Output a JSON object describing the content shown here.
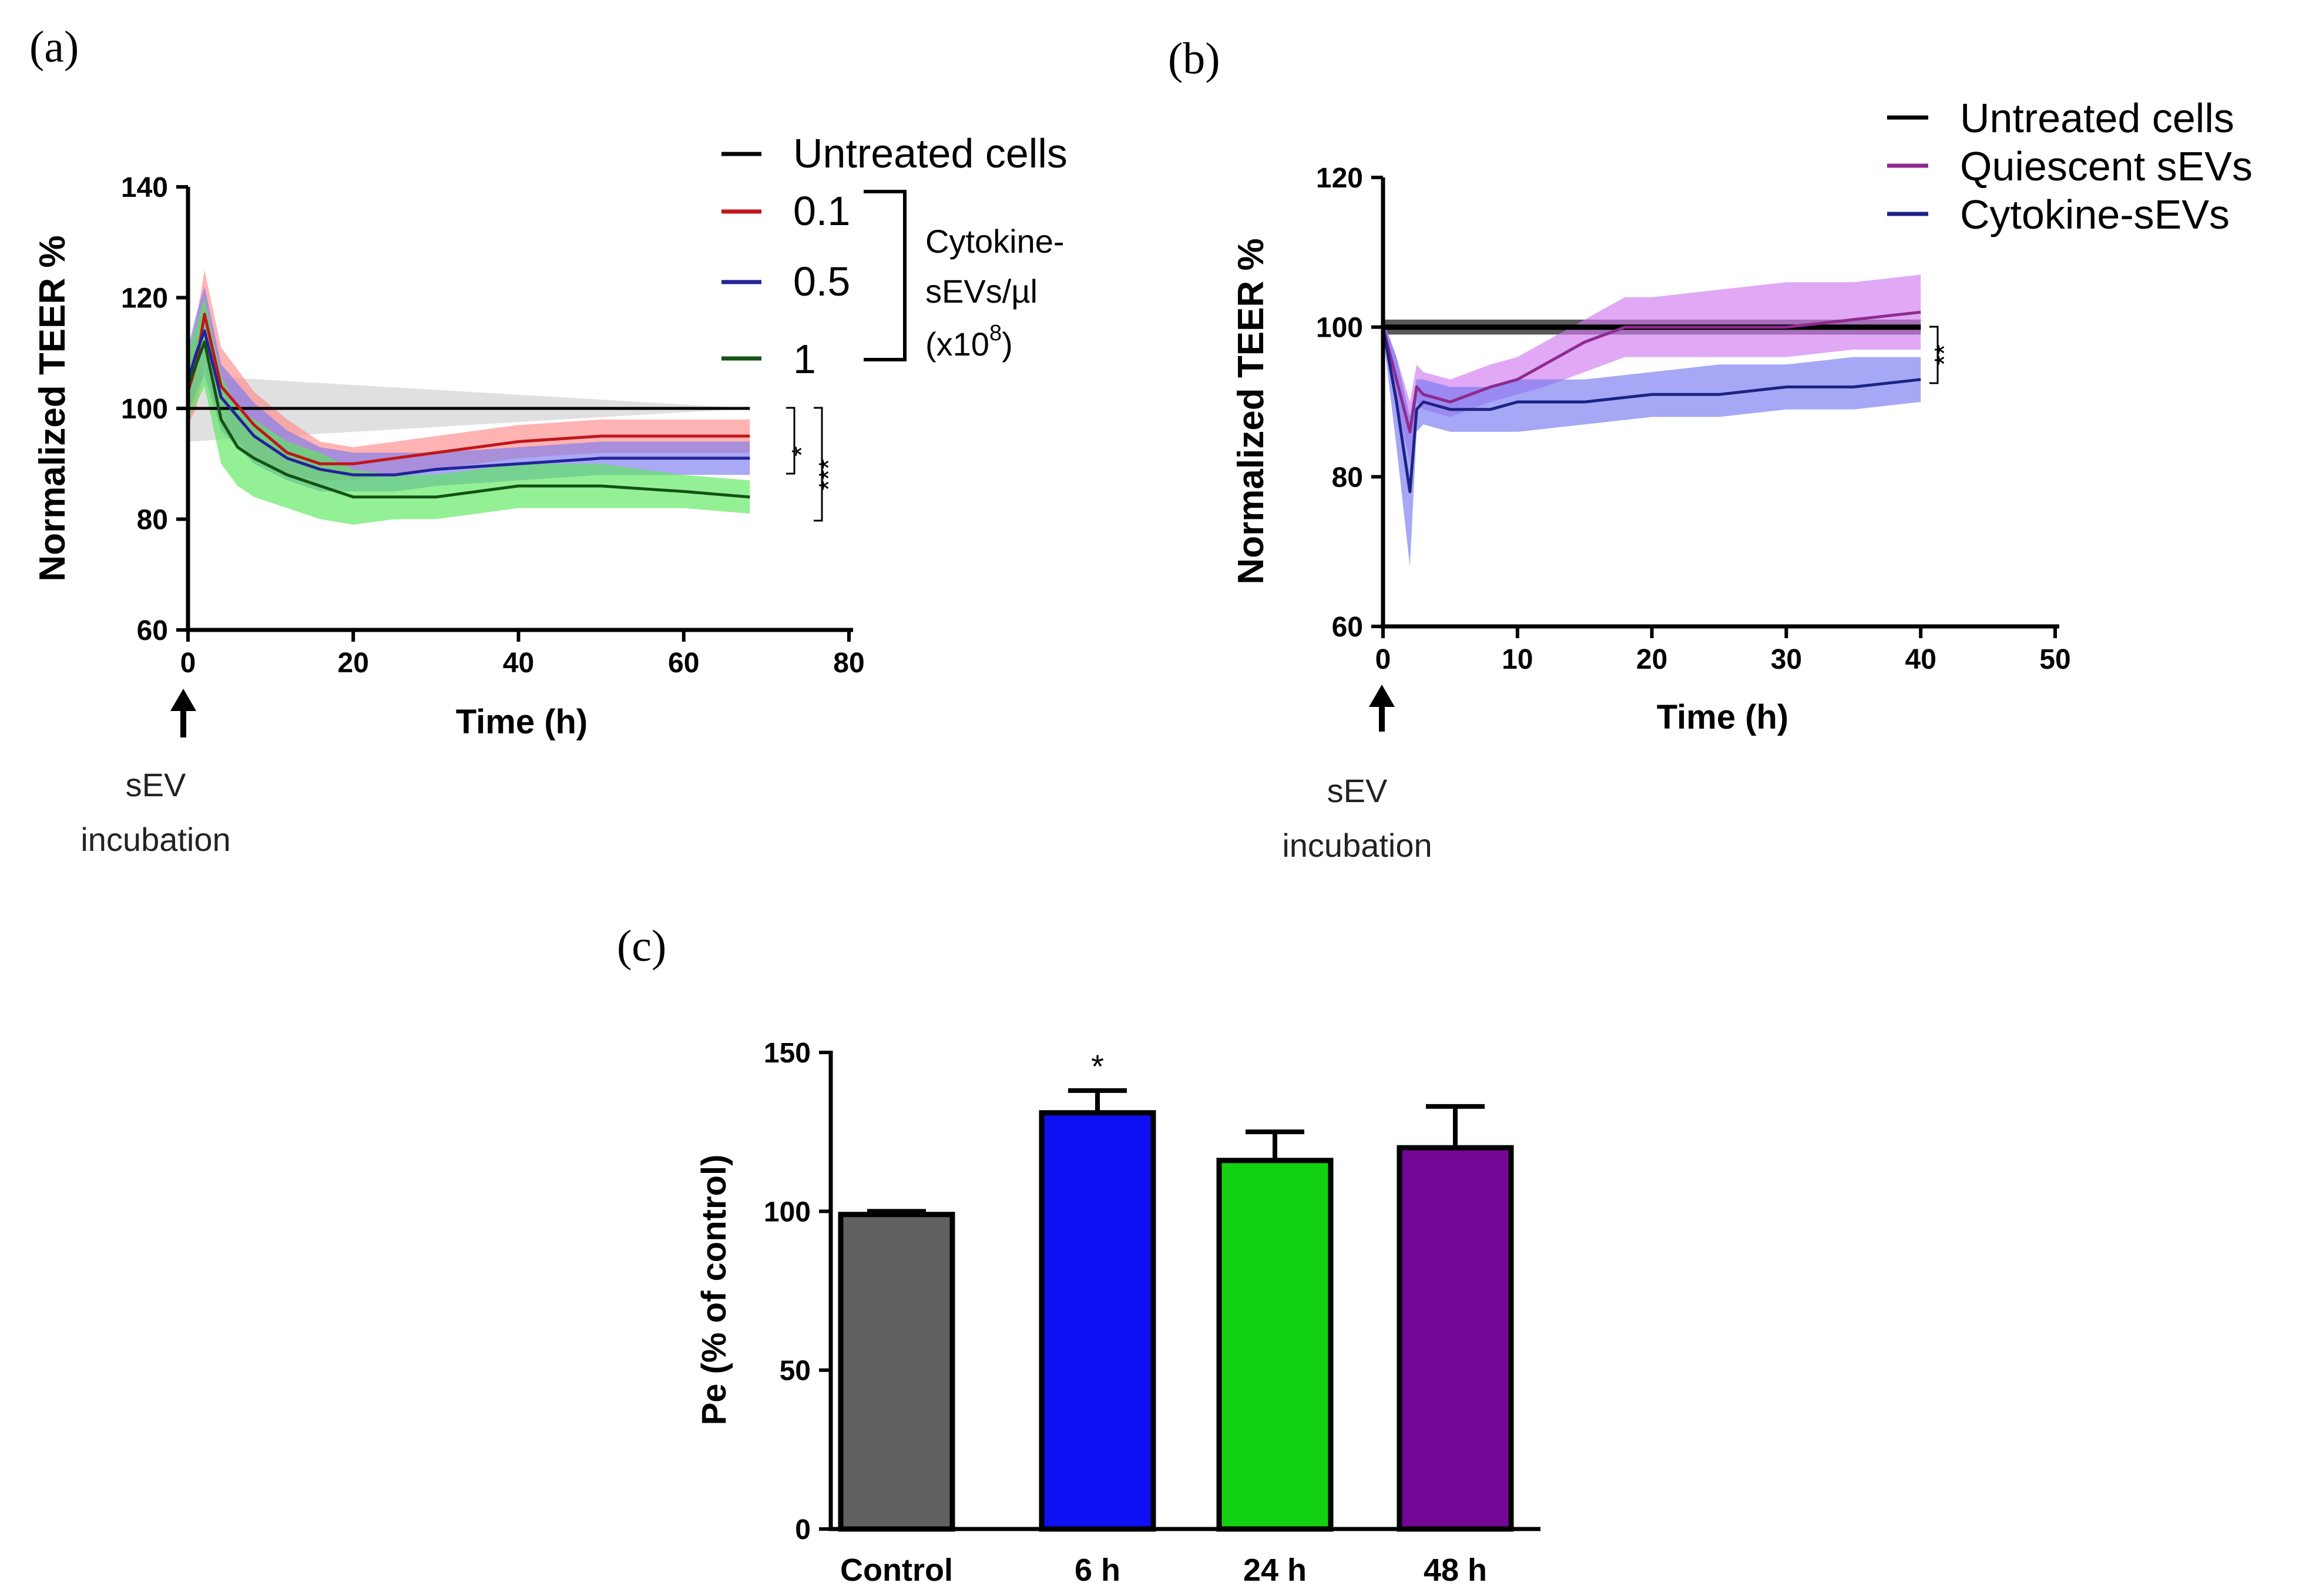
{
  "chart_data": [
    {
      "panel_label": "(a)",
      "type": "line",
      "xlabel": "Time (h)",
      "ylabel": "Normalized TEER %",
      "xlim": [
        0,
        80
      ],
      "ylim": [
        60,
        140
      ],
      "xticks": [
        "0",
        "20",
        "40",
        "60",
        "80"
      ],
      "yticks": [
        "60",
        "80",
        "100",
        "120",
        "140"
      ],
      "arrow_annotation": [
        "sEV",
        "incubation"
      ],
      "legend": {
        "items": [
          "Untreated cells",
          "0.1",
          "0.5",
          "1"
        ],
        "group_label": [
          "Cytokine-",
          "sEVs/µl",
          "(x10",
          "8",
          ")"
        ]
      },
      "significance": [
        "*",
        "***"
      ],
      "series": [
        {
          "name": "Untreated cells",
          "color": "#000000",
          "band_color": "#d6d6d6",
          "x": [
            0,
            68
          ],
          "y": [
            100,
            100
          ],
          "lower": [
            94,
            100
          ],
          "upper": [
            106,
            100
          ]
        },
        {
          "name": "0.1",
          "color": "#c0161b",
          "band_color": "#ff8a8a",
          "x": [
            0,
            1,
            2,
            4,
            8,
            12,
            16,
            20,
            25,
            30,
            40,
            50,
            60,
            68
          ],
          "y": [
            103,
            108,
            117,
            104,
            97,
            92,
            90,
            90,
            91,
            92,
            94,
            95,
            95,
            95
          ],
          "lower": [
            97,
            100,
            108,
            97,
            91,
            88,
            87,
            87,
            88,
            89,
            91,
            92,
            92,
            92
          ],
          "upper": [
            109,
            116,
            125,
            111,
            103,
            98,
            94,
            93,
            94,
            95,
            97,
            98,
            98,
            98
          ]
        },
        {
          "name": "0.5",
          "color": "#23239a",
          "band_color": "#7b7bf0",
          "x": [
            0,
            1,
            2,
            4,
            8,
            12,
            16,
            20,
            25,
            30,
            40,
            50,
            60,
            68
          ],
          "y": [
            105,
            110,
            114,
            102,
            95,
            91,
            89,
            88,
            88,
            89,
            90,
            91,
            91,
            91
          ],
          "lower": [
            99,
            103,
            106,
            96,
            90,
            87,
            85,
            85,
            85,
            86,
            87,
            88,
            88,
            88
          ],
          "upper": [
            111,
            117,
            122,
            108,
            101,
            96,
            93,
            92,
            92,
            92,
            93,
            94,
            94,
            94
          ]
        },
        {
          "name": "1",
          "color": "#145214",
          "band_color": "#5ae85a",
          "x": [
            0,
            1,
            2,
            4,
            6,
            8,
            12,
            16,
            20,
            25,
            30,
            40,
            50,
            60,
            68
          ],
          "y": [
            104,
            108,
            112,
            98,
            93,
            91,
            88,
            86,
            84,
            84,
            84,
            86,
            86,
            85,
            84
          ],
          "lower": [
            98,
            101,
            104,
            90,
            86,
            84,
            82,
            80,
            79,
            80,
            80,
            82,
            82,
            82,
            81
          ],
          "upper": [
            110,
            115,
            120,
            106,
            100,
            98,
            94,
            92,
            89,
            88,
            88,
            90,
            90,
            88,
            87
          ]
        }
      ]
    },
    {
      "panel_label": "(b)",
      "type": "line",
      "xlabel": "Time (h)",
      "ylabel": "Normalized TEER %",
      "xlim": [
        0,
        50
      ],
      "ylim": [
        60,
        120
      ],
      "xticks": [
        "0",
        "10",
        "20",
        "30",
        "40",
        "50"
      ],
      "yticks": [
        "60",
        "80",
        "100",
        "120"
      ],
      "arrow_annotation": [
        "sEV",
        "incubation"
      ],
      "legend": {
        "items": [
          "Untreated cells",
          "Quiescent sEVs",
          "Cytokine-sEVs"
        ]
      },
      "significance": [
        "**"
      ],
      "series": [
        {
          "name": "Untreated cells",
          "color": "#000000",
          "band_color": "#000000",
          "x": [
            0,
            40
          ],
          "y": [
            100,
            100
          ],
          "lower": [
            99,
            99
          ],
          "upper": [
            101,
            101
          ]
        },
        {
          "name": "Quiescent sEVs",
          "color": "#8e2a8e",
          "band_color": "#cf7aef",
          "x": [
            0,
            1,
            2,
            2.5,
            3,
            5,
            8,
            10,
            12,
            15,
            18,
            20,
            25,
            30,
            35,
            40
          ],
          "y": [
            100,
            93,
            86,
            92,
            91,
            90,
            92,
            93,
            95,
            98,
            100,
            100,
            100,
            100,
            101,
            102
          ],
          "lower": [
            99,
            90,
            82,
            90,
            89,
            88,
            90,
            91,
            92,
            94,
            96,
            96,
            96,
            96,
            97,
            97
          ],
          "upper": [
            101,
            96,
            90,
            95,
            94,
            93,
            95,
            96,
            98,
            101,
            104,
            104,
            105,
            106,
            106,
            107
          ]
        },
        {
          "name": "Cytokine-sEVs",
          "color": "#1d2385",
          "band_color": "#7778ef",
          "x": [
            0,
            1,
            2,
            2.5,
            3,
            5,
            8,
            10,
            15,
            20,
            25,
            30,
            35,
            40
          ],
          "y": [
            100,
            90,
            78,
            89,
            90,
            89,
            89,
            90,
            90,
            91,
            91,
            92,
            92,
            93
          ],
          "lower": [
            99,
            84,
            68,
            86,
            87,
            86,
            86,
            86,
            87,
            88,
            88,
            89,
            89,
            90
          ],
          "upper": [
            101,
            96,
            88,
            93,
            93,
            92,
            92,
            93,
            93,
            94,
            95,
            95,
            96,
            96
          ]
        }
      ]
    },
    {
      "panel_label": "(c)",
      "type": "bar",
      "ylabel": "Pe (% of control)",
      "ylim": [
        0,
        150
      ],
      "yticks": [
        "0",
        "50",
        "100",
        "150"
      ],
      "categories": [
        "Control",
        "6 h",
        "24 h",
        "48 h"
      ],
      "values": [
        99,
        131,
        116,
        120
      ],
      "errors": [
        1,
        7,
        9,
        13
      ],
      "colors": [
        "#616161",
        "#0d10f2",
        "#12d012",
        "#750796"
      ],
      "significance": [
        "",
        "*",
        "",
        ""
      ]
    }
  ]
}
